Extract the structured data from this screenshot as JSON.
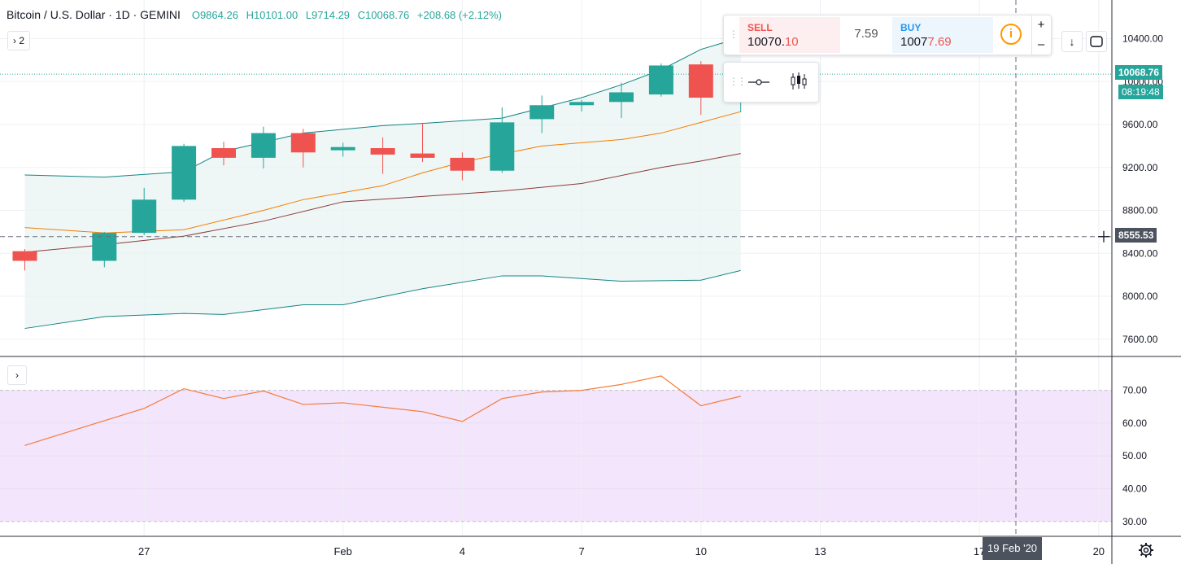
{
  "header": {
    "symbol": "Bitcoin / U.S. Dollar · 1D · GEMINI",
    "open": "O9864.26",
    "high": "H10101.00",
    "low": "L9714.29",
    "close": "C10068.76",
    "change": "+208.68 (+2.12%)"
  },
  "legend_toggle_1": "› 2",
  "legend_toggle_2": "›",
  "trade_panel": {
    "sell_label": "SELL",
    "sell_price_main": "10070.",
    "sell_price_hi": "10",
    "spread": "7.59",
    "buy_label": "BUY",
    "buy_price_main": "1007",
    "buy_price_hi": "7.69",
    "info_icon": "i",
    "plus": "+",
    "minus": "–"
  },
  "price_labels": {
    "last": "10068.76",
    "countdown": "08:19:48",
    "crosshair": "8555.53",
    "date_crosshair": "19 Feb '20"
  },
  "colors": {
    "up": "#26a69a",
    "down": "#ef5350",
    "band_line": "#138484",
    "band_fill": "#e8f4f2",
    "basis": "#f57c00",
    "ma": "#8b3a3a",
    "rsi_line": "#f57c3b",
    "rsi_band": "#f3e5fc"
  },
  "chart_data": [
    {
      "type": "candlestick",
      "title": "Bitcoin / U.S. Dollar · 1D · GEMINI",
      "ylim": [
        7400,
        10700
      ],
      "yticks": [
        "10400.00",
        "10000.00",
        "9600.00",
        "9200.00",
        "8800.00",
        "8400.00",
        "8000.00",
        "7600.00"
      ],
      "x_ticks": [
        {
          "label": "27",
          "day": 3
        },
        {
          "label": "Feb",
          "day": 8
        },
        {
          "label": "4",
          "day": 11
        },
        {
          "label": "7",
          "day": 14
        },
        {
          "label": "10",
          "day": 17
        },
        {
          "label": "13",
          "day": 20
        },
        {
          "label": "17",
          "day": 24
        },
        {
          "label": "20",
          "day": 27
        }
      ],
      "candles": [
        {
          "day": 0,
          "open": 8420,
          "high": 8440,
          "low": 8240,
          "close": 8330
        },
        {
          "day": 2,
          "open": 8330,
          "high": 8600,
          "low": 8270,
          "close": 8590
        },
        {
          "day": 3,
          "open": 8590,
          "high": 9010,
          "low": 8570,
          "close": 8900
        },
        {
          "day": 4,
          "open": 8900,
          "high": 9420,
          "low": 8880,
          "close": 9400
        },
        {
          "day": 5,
          "open": 9380,
          "high": 9440,
          "low": 9220,
          "close": 9290
        },
        {
          "day": 6,
          "open": 9290,
          "high": 9580,
          "low": 9190,
          "close": 9520
        },
        {
          "day": 7,
          "open": 9520,
          "high": 9560,
          "low": 9200,
          "close": 9340
        },
        {
          "day": 8,
          "open": 9360,
          "high": 9430,
          "low": 9300,
          "close": 9390
        },
        {
          "day": 9,
          "open": 9380,
          "high": 9480,
          "low": 9140,
          "close": 9320
        },
        {
          "day": 10,
          "open": 9330,
          "high": 9610,
          "low": 9250,
          "close": 9290
        },
        {
          "day": 11,
          "open": 9290,
          "high": 9340,
          "low": 9080,
          "close": 9170
        },
        {
          "day": 12,
          "open": 9170,
          "high": 9760,
          "low": 9150,
          "close": 9620
        },
        {
          "day": 13,
          "open": 9650,
          "high": 9870,
          "low": 9520,
          "close": 9780
        },
        {
          "day": 14,
          "open": 9780,
          "high": 9830,
          "low": 9720,
          "close": 9810
        },
        {
          "day": 15,
          "open": 9810,
          "high": 9990,
          "low": 9660,
          "close": 9900
        },
        {
          "day": 16,
          "open": 9880,
          "high": 10170,
          "low": 9860,
          "close": 10150
        },
        {
          "day": 17,
          "open": 10160,
          "high": 10190,
          "low": 9690,
          "close": 9850
        },
        {
          "day": 18,
          "open": 9864.26,
          "high": 10101.0,
          "low": 9714.29,
          "close": 10068.76
        }
      ],
      "band_upper": [
        [
          0,
          9130
        ],
        [
          2,
          9110
        ],
        [
          4,
          9160
        ],
        [
          5,
          9350
        ],
        [
          7,
          9520
        ],
        [
          9,
          9590
        ],
        [
          10,
          9610
        ],
        [
          12,
          9660
        ],
        [
          14,
          9850
        ],
        [
          15,
          9970
        ],
        [
          16,
          10110
        ],
        [
          17,
          10300
        ],
        [
          18,
          10410
        ]
      ],
      "band_lower": [
        [
          0,
          7700
        ],
        [
          2,
          7810
        ],
        [
          4,
          7840
        ],
        [
          5,
          7830
        ],
        [
          7,
          7920
        ],
        [
          8,
          7920
        ],
        [
          10,
          8070
        ],
        [
          12,
          8190
        ],
        [
          13,
          8190
        ],
        [
          15,
          8140
        ],
        [
          17,
          8150
        ],
        [
          18,
          8240
        ]
      ],
      "basis": [
        [
          0,
          8640
        ],
        [
          2,
          8590
        ],
        [
          4,
          8620
        ],
        [
          6,
          8800
        ],
        [
          7,
          8900
        ],
        [
          9,
          9030
        ],
        [
          10,
          9150
        ],
        [
          11,
          9250
        ],
        [
          13,
          9400
        ],
        [
          15,
          9460
        ],
        [
          16,
          9520
        ],
        [
          17,
          9620
        ],
        [
          18,
          9720
        ]
      ],
      "ma": [
        [
          0,
          8410
        ],
        [
          2,
          8480
        ],
        [
          4,
          8560
        ],
        [
          6,
          8700
        ],
        [
          8,
          8880
        ],
        [
          10,
          8930
        ],
        [
          12,
          8980
        ],
        [
          14,
          9050
        ],
        [
          16,
          9200
        ],
        [
          17,
          9260
        ],
        [
          18,
          9330
        ]
      ],
      "last_price": 10068.76,
      "crosshair_price": 8555.53
    },
    {
      "type": "line",
      "title": "",
      "ylim": [
        27.5,
        74
      ],
      "yticks": [
        "70.00",
        "60.00",
        "50.00",
        "40.00",
        "30.00"
      ],
      "band": [
        30,
        70
      ],
      "series": [
        {
          "values": [
            [
              0,
              53.2
            ],
            [
              3,
              64.5
            ],
            [
              4,
              70.5
            ],
            [
              5,
              67.5
            ],
            [
              6,
              69.8
            ],
            [
              7,
              65.7
            ],
            [
              8,
              66.2
            ],
            [
              10,
              63.5
            ],
            [
              11,
              60.5
            ],
            [
              12,
              67.5
            ],
            [
              13,
              69.5
            ],
            [
              14,
              70.0
            ],
            [
              15,
              71.8
            ],
            [
              16,
              74.4
            ],
            [
              17,
              65.3
            ],
            [
              18,
              68.2
            ]
          ]
        }
      ]
    }
  ]
}
